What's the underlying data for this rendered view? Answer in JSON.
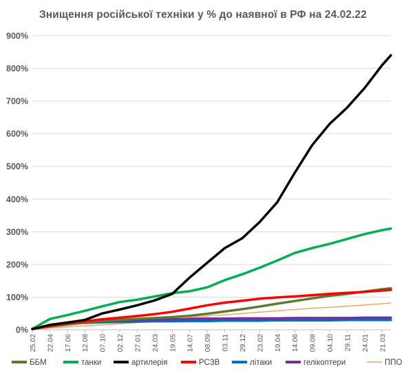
{
  "chart_data": {
    "type": "line",
    "title": "Знищення російської техніки у % до наявної в РФ на 24.02.22",
    "xlabel": "",
    "ylabel": "",
    "ylim": [
      0,
      900
    ],
    "y_ticks": [
      "0%",
      "100%",
      "200%",
      "300%",
      "400%",
      "500%",
      "600%",
      "700%",
      "800%",
      "900%"
    ],
    "x_ticks": [
      "25.02",
      "22.04",
      "17.06",
      "12.08",
      "07.10",
      "02.12",
      "27.01",
      "24.03",
      "19.05",
      "14.07",
      "08.09",
      "03.11",
      "29.12",
      "23.02",
      "19.04",
      "14.06",
      "09.08",
      "04.10",
      "29.11",
      "24.01",
      "21.03"
    ],
    "grid": true,
    "legend_position": "bottom",
    "x": [
      0,
      1,
      2,
      3,
      4,
      5,
      6,
      7,
      8,
      9,
      10,
      11,
      12,
      13,
      14,
      15,
      16,
      17,
      18,
      19,
      20,
      20.5
    ],
    "series": [
      {
        "name": "ББМ",
        "color": "#5a7a32",
        "width": 3.5,
        "values": [
          3,
          10,
          16,
          22,
          26,
          30,
          33,
          36,
          39,
          43,
          49,
          56,
          63,
          71,
          80,
          88,
          96,
          104,
          110,
          117,
          124,
          127
        ]
      },
      {
        "name": "танки",
        "color": "#00b050",
        "width": 3.5,
        "values": [
          3,
          33,
          45,
          58,
          72,
          85,
          92,
          102,
          112,
          118,
          130,
          152,
          170,
          190,
          212,
          235,
          250,
          263,
          278,
          293,
          305,
          310
        ]
      },
      {
        "name": "артилерія",
        "color": "#000000",
        "width": 3.5,
        "values": [
          2,
          15,
          22,
          30,
          50,
          62,
          75,
          90,
          110,
          160,
          205,
          250,
          280,
          330,
          390,
          480,
          565,
          630,
          680,
          740,
          810,
          840
        ]
      },
      {
        "name": "РСЗВ",
        "color": "#ff0000",
        "width": 3.5,
        "values": [
          3,
          12,
          20,
          26,
          32,
          37,
          42,
          48,
          55,
          65,
          75,
          83,
          89,
          95,
          99,
          102,
          106,
          110,
          113,
          116,
          120,
          122
        ]
      },
      {
        "name": "літаки",
        "color": "#0070c0",
        "width": 3.5,
        "values": [
          3,
          12,
          18,
          21,
          23,
          24,
          25,
          26,
          26,
          27,
          27,
          28,
          28,
          28,
          29,
          29,
          29,
          29,
          30,
          30,
          30,
          30
        ]
      },
      {
        "name": "гелікоптери",
        "color": "#7030a0",
        "width": 3.5,
        "values": [
          3,
          13,
          18,
          22,
          26,
          28,
          30,
          31,
          32,
          33,
          34,
          34,
          35,
          35,
          35,
          36,
          36,
          36,
          36,
          37,
          37,
          37
        ]
      },
      {
        "name": "ППО",
        "color": "#f4a460",
        "width": 1.5,
        "values": [
          1,
          5,
          9,
          12,
          15,
          18,
          22,
          27,
          32,
          37,
          42,
          46,
          50,
          54,
          58,
          62,
          66,
          69,
          72,
          76,
          80,
          82
        ]
      }
    ]
  }
}
